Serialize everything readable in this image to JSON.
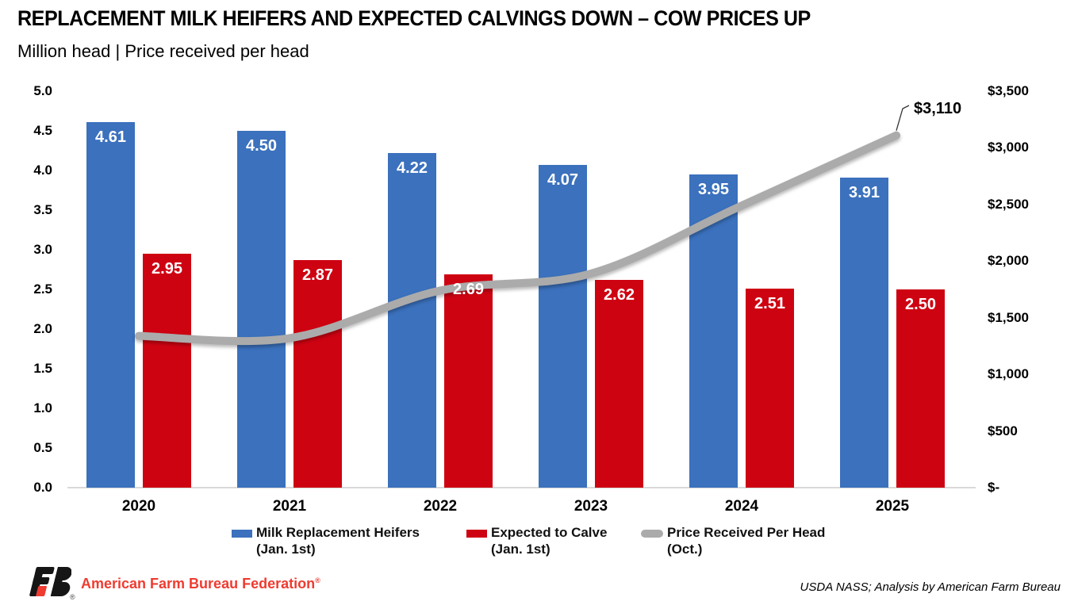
{
  "colors": {
    "blue": "#3B71BD",
    "red": "#CE0312",
    "line_gray": "#ABABAB",
    "axis_gray": "#D9D9D9",
    "brand_red": "#EF3B30"
  },
  "header": {
    "title": "REPLACEMENT MILK HEIFERS AND EXPECTED CALVINGS DOWN – COW PRICES UP",
    "subtitle": "Million head | Price received per head"
  },
  "chart_data": {
    "type": "bar",
    "title": "REPLACEMENT MILK HEIFERS AND EXPECTED CALVINGS DOWN – COW PRICES UP",
    "subtitle": "Million head | Price received per head",
    "categories": [
      "2020",
      "2021",
      "2022",
      "2023",
      "2024",
      "2025"
    ],
    "series": [
      {
        "name": "Milk Replacement Heifers (Jan. 1st)",
        "type": "bar",
        "axis": "left",
        "color_key": "blue",
        "values": [
          4.61,
          4.5,
          4.22,
          4.07,
          3.95,
          3.91
        ],
        "labels": [
          "4.61",
          "4.50",
          "4.22",
          "4.07",
          "3.95",
          "3.91"
        ]
      },
      {
        "name": "Expected to Calve (Jan. 1st)",
        "type": "bar",
        "axis": "left",
        "color_key": "red",
        "values": [
          2.95,
          2.87,
          2.69,
          2.62,
          2.51,
          2.5
        ],
        "labels": [
          "2.95",
          "2.87",
          "2.69",
          "2.62",
          "2.51",
          "2.50"
        ]
      },
      {
        "name": "Price Received Per Head (Oct.)",
        "type": "line",
        "axis": "right",
        "color_key": "line_gray",
        "values": [
          1340,
          1320,
          1740,
          1890,
          2490,
          3110
        ],
        "values_note": "only the 2025 point is labeled on the chart ($3,110); other points estimated from the right axis"
      }
    ],
    "left_axis": {
      "min": 0,
      "max": 5,
      "step": 0.5,
      "tick_labels": [
        "5.0",
        "4.5",
        "4.0",
        "3.5",
        "3.0",
        "2.5",
        "2.0",
        "1.5",
        "1.0",
        "0.5",
        "0.0"
      ]
    },
    "right_axis": {
      "min": 0,
      "max": 3500,
      "step": 500,
      "tick_labels": [
        "$3,500",
        "$3,000",
        "$2,500",
        "$2,000",
        "$1,500",
        "$1,000",
        "$500",
        "$-"
      ]
    },
    "annotation": {
      "text": "$3,110",
      "series": "Price Received Per Head (Oct.)",
      "category": "2025"
    },
    "legend_position": "bottom",
    "grid": false
  },
  "legend": {
    "items": [
      {
        "line1": "Milk Replacement Heifers",
        "line2": "(Jan. 1st)",
        "color_key": "blue",
        "swatch": "rect"
      },
      {
        "line1": "Expected to Calve",
        "line2": "(Jan. 1st)",
        "color_key": "red",
        "swatch": "rect"
      },
      {
        "line1": "Price Received Per Head",
        "line2": "(Oct.)",
        "color_key": "line_gray",
        "swatch": "pill"
      }
    ]
  },
  "footer": {
    "brand": "American Farm Bureau Federation",
    "brand_mark": "®",
    "logo_mark": "®",
    "source": "USDA NASS; Analysis by American Farm Bureau"
  }
}
